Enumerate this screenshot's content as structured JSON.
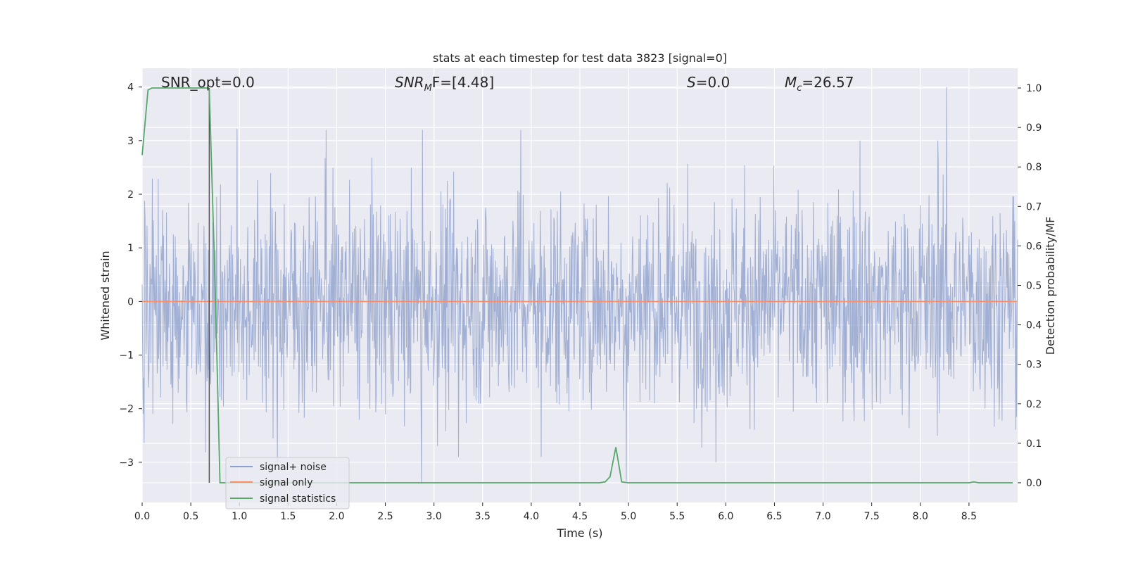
{
  "chart_data": {
    "type": "line",
    "title": "stats at each timestep for test data 3823 [signal=0]",
    "xlabel": "Time (s)",
    "ylabel": "Whitened strain",
    "ylabel_right": "Detection probability/MF",
    "xlim": [
      0.0,
      9.0
    ],
    "ylim": [
      -3.75,
      4.35
    ],
    "ylim_right": [
      -0.05,
      1.05
    ],
    "xticks": [
      0.0,
      0.5,
      1.0,
      1.5,
      2.0,
      2.5,
      3.0,
      3.5,
      4.0,
      4.5,
      5.0,
      5.5,
      6.0,
      6.5,
      7.0,
      7.5,
      8.0,
      8.5
    ],
    "xtick_labels": [
      "0.0",
      "0.5",
      "1.0",
      "1.5",
      "2.0",
      "2.5",
      "3.0",
      "3.5",
      "4.0",
      "4.5",
      "5.0",
      "5.5",
      "6.0",
      "6.5",
      "7.0",
      "7.5",
      "8.0",
      "8.5"
    ],
    "yticks": [
      4,
      3,
      2,
      1,
      0,
      -1,
      -2,
      -3
    ],
    "ytick_labels": [
      "4",
      "3",
      "2",
      "1",
      "0",
      "−1",
      "−2",
      "−3"
    ],
    "yticks_right": [
      1.0,
      0.9,
      0.8,
      0.7,
      0.6,
      0.5,
      0.4,
      0.3,
      0.2,
      0.1,
      0.0
    ],
    "ytick_labels_right": [
      "1.0",
      "0.9",
      "0.8",
      "0.7",
      "0.6",
      "0.5",
      "0.4",
      "0.3",
      "0.2",
      "0.1",
      "0.0"
    ],
    "grid": true,
    "legend_position": "lower-left",
    "annotations": {
      "snr_opt": "SNR_opt=0.0",
      "snr_mf_main": "SNR",
      "snr_mf_sub": "M",
      "snr_mf_rest": "F=[4.48]",
      "s_main": "S",
      "s_rest": "=0.0",
      "mc_main": "M",
      "mc_sub": "c",
      "mc_rest": "=26.57"
    },
    "marker_line_x": 0.69,
    "series": [
      {
        "name": "signal+ noise",
        "color": "#8da0cb",
        "axis": "left",
        "kind": "noise",
        "x_range": [
          0.0,
          9.0
        ],
        "typical_abs": 1.0,
        "peaks": [
          {
            "x": 1.89,
            "y": 3.2
          },
          {
            "x": 2.88,
            "y": 3.2
          },
          {
            "x": 3.89,
            "y": 3.2
          },
          {
            "x": 8.27,
            "y": 4.0
          },
          {
            "x": 7.38,
            "y": 3.0
          },
          {
            "x": 8.18,
            "y": 3.0
          },
          {
            "x": 2.87,
            "y": -3.4
          },
          {
            "x": 4.98,
            "y": -3.35
          },
          {
            "x": 1.39,
            "y": -3.0
          },
          {
            "x": 3.25,
            "y": -2.9
          },
          {
            "x": 4.1,
            "y": -2.9
          },
          {
            "x": 5.9,
            "y": -3.0
          }
        ]
      },
      {
        "name": "signal only",
        "color": "#fc8d62",
        "axis": "left",
        "x": [
          0.0,
          9.0
        ],
        "y": [
          0.0,
          0.0
        ]
      },
      {
        "name": "signal statistics",
        "color": "#55a868",
        "axis": "right",
        "x": [
          0.0,
          0.06,
          0.1,
          0.2,
          0.3,
          0.4,
          0.5,
          0.6,
          0.68,
          0.69,
          0.75,
          0.8,
          0.87,
          1.0,
          2.0,
          3.0,
          4.0,
          4.7,
          4.76,
          4.81,
          4.87,
          4.93,
          5.0,
          6.0,
          7.0,
          8.0,
          8.5,
          8.55,
          8.6,
          8.95
        ],
        "y": [
          0.83,
          0.995,
          1.0,
          1.0,
          1.0,
          1.0,
          1.0,
          1.0,
          1.0,
          0.995,
          0.5,
          0.0,
          0.0,
          0.0,
          0.0,
          0.0,
          0.0,
          0.0,
          0.002,
          0.015,
          0.09,
          0.002,
          0.0,
          0.0,
          0.0,
          0.0,
          0.0,
          0.002,
          0.0,
          0.0
        ]
      }
    ]
  }
}
